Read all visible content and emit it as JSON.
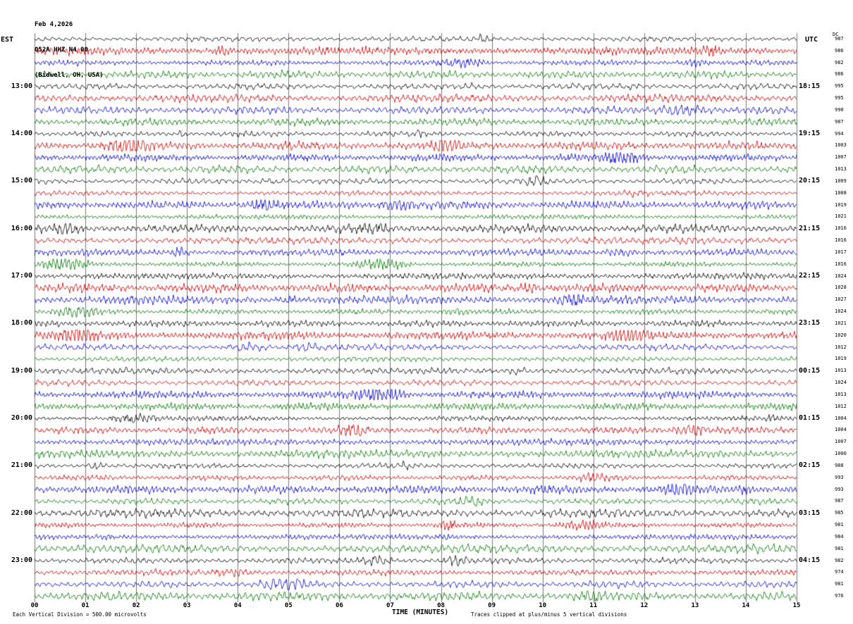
{
  "header": {
    "date": "Feb 4,2026",
    "station": "Q52A HHZ N4 00",
    "location": "(Bidwell, OH, USA)"
  },
  "axes": {
    "left_label": "EST",
    "right_label": "UTC",
    "dc_label": "DC",
    "x_label": "TIME (MINUTES)",
    "minute_labels": [
      "00",
      "01",
      "02",
      "03",
      "04",
      "05",
      "06",
      "07",
      "08",
      "09",
      "10",
      "11",
      "12",
      "13",
      "14",
      "15"
    ],
    "left_hour_labels": [
      "13:00",
      "14:00",
      "15:00",
      "16:00",
      "17:00",
      "18:00",
      "19:00",
      "20:00",
      "21:00",
      "22:00",
      "23:00"
    ],
    "right_hour_labels": [
      "18:15",
      "19:15",
      "20:15",
      "21:15",
      "22:15",
      "23:15",
      "00:15",
      "01:15",
      "02:15",
      "03:15",
      "04:15"
    ]
  },
  "footer": {
    "left": "Each Vertical Division =  500.00 microvolts",
    "right": "Traces clipped at plus/minus 5 vertical divisions"
  },
  "chart_data": {
    "type": "line",
    "subtype": "helicorder-seismogram",
    "title": "Q52A HHZ N4 00 (Bidwell, OH, USA) Feb 4,2026",
    "xlabel": "TIME (MINUTES)",
    "x_range": [
      0,
      15
    ],
    "rows": 48,
    "minutes_per_row": 15,
    "traces_per_hour": 4,
    "first_row_est": "12:00",
    "last_row_est": "23:45",
    "trace_colors": [
      "#000000",
      "#cc0000",
      "#0000cc",
      "#007700"
    ],
    "grid": "vertical lines at every minute",
    "legend_position": "none",
    "clip_divisions": 5,
    "microvolts_per_division": 500.0,
    "dc_offsets": [
      987,
      986,
      982,
      986,
      995,
      995,
      990,
      987,
      994,
      1003,
      1007,
      1013,
      1009,
      1008,
      1019,
      1021,
      1016,
      1016,
      1017,
      1016,
      1024,
      1028,
      1027,
      1024,
      1021,
      1020,
      1012,
      1019,
      1013,
      1024,
      1013,
      1012,
      1004,
      1004,
      1007,
      1000,
      988,
      993,
      993,
      987,
      985,
      981,
      984,
      981,
      982,
      974,
      981,
      976
    ],
    "waveform_note": "Continuous microseismic background noise on every trace, amplitude about 1-4 px with occasional short higher-amplitude bursts; no large earthquake signal.",
    "render_seed": 987654
  }
}
